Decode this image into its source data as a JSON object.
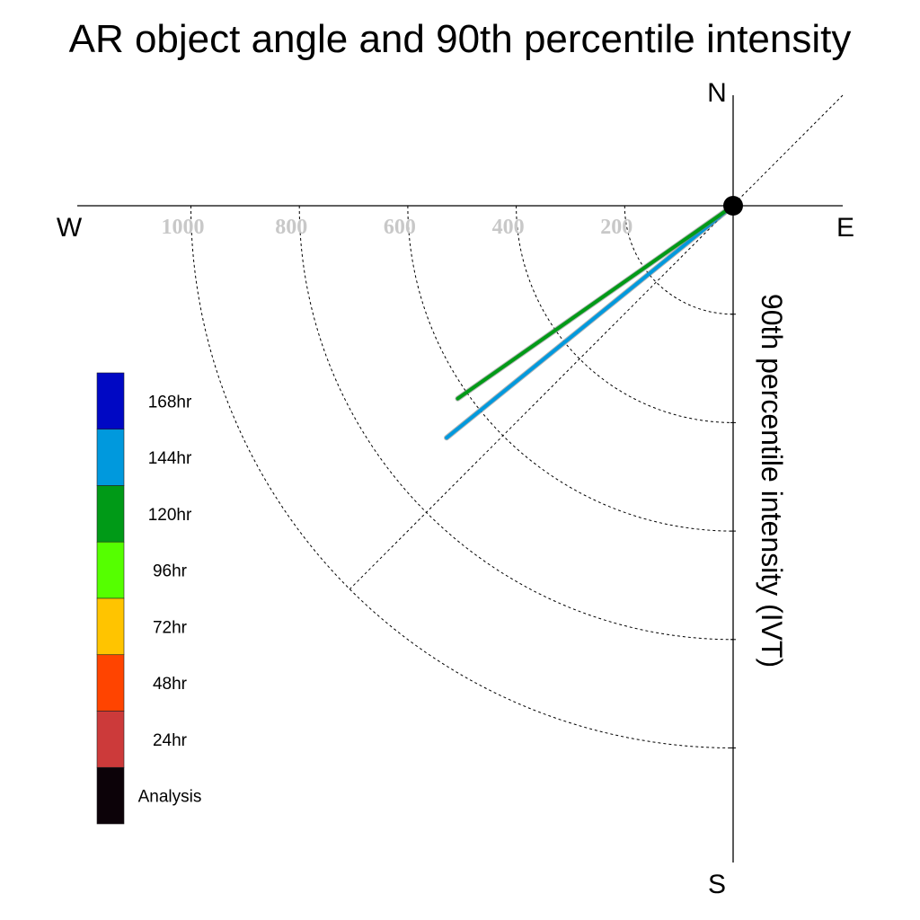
{
  "chart_data": {
    "type": "polar",
    "title": "AR object angle and 90th percentile intensity",
    "ylabel": "90th percentile intensity (IVT)",
    "compass": {
      "north": "N",
      "south": "S",
      "east": "E",
      "west": "W"
    },
    "radial_ticks": [
      200,
      400,
      600,
      800,
      1000
    ],
    "radial_tick_labels": [
      "200",
      "400",
      "600",
      "800",
      "1000"
    ],
    "rmax": 1200,
    "grid": true,
    "diagonal_guide_deg": 45,
    "legend": {
      "placement": "left",
      "entries": [
        {
          "label": "168hr",
          "color": "#0008C4"
        },
        {
          "label": "144hr",
          "color": "#0099DD"
        },
        {
          "label": "120hr",
          "color": "#009A17"
        },
        {
          "label": "96hr",
          "color": "#55FF00"
        },
        {
          "label": "72hr",
          "color": "#FFC400"
        },
        {
          "label": "48hr",
          "color": "#FF4400"
        },
        {
          "label": "24hr",
          "color": "#CC3A3A"
        },
        {
          "label": "Analysis",
          "color": "#0C0208"
        }
      ]
    },
    "series": [
      {
        "lead": "144hr",
        "color": "#0099DD",
        "angle_deg": 39,
        "intensity": 680
      },
      {
        "lead": "120hr",
        "color": "#009A17",
        "angle_deg": 35,
        "intensity": 620
      }
    ]
  }
}
